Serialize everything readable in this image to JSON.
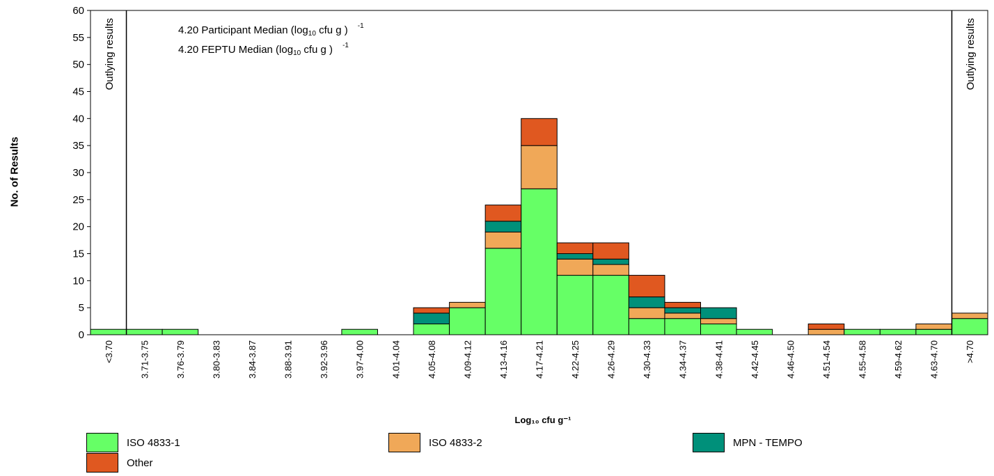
{
  "chart_data": {
    "type": "bar",
    "stacked": true,
    "title": "",
    "xlabel": "Log₁₀ cfu g⁻¹",
    "ylabel": "No. of Results",
    "ylim": [
      0,
      60
    ],
    "yticks": [
      0,
      5,
      10,
      15,
      20,
      25,
      30,
      35,
      40,
      45,
      50,
      55,
      60
    ],
    "grid": false,
    "legend_position": "bottom",
    "categories": [
      "<3.70",
      "3.71-3.75",
      "3.76-3.79",
      "3.80-3.83",
      "3.84-3.87",
      "3.88-3.91",
      "3.92-3.96",
      "3.97-4.00",
      "4.01-4.04",
      "4.05-4.08",
      "4.09-4.12",
      "4.13-4.16",
      "4.17-4.21",
      "4.22-4.25",
      "4.26-4.29",
      "4.30-4.33",
      "4.34-4.37",
      "4.38-4.41",
      "4.42-4.45",
      "4.46-4.50",
      "4.51-4.54",
      "4.55-4.58",
      "4.59-4.62",
      "4.63-4.70",
      ">4.70"
    ],
    "series": [
      {
        "name": "ISO 4833-1",
        "color": "#66ff66",
        "values": [
          1,
          1,
          1,
          0,
          0,
          0,
          0,
          1,
          0,
          2,
          5,
          16,
          27,
          11,
          11,
          3,
          3,
          2,
          1,
          0,
          0,
          1,
          1,
          1,
          3
        ]
      },
      {
        "name": "ISO 4833-2",
        "color": "#f0a858",
        "values": [
          0,
          0,
          0,
          0,
          0,
          0,
          0,
          0,
          0,
          0,
          1,
          3,
          8,
          3,
          2,
          2,
          1,
          1,
          0,
          0,
          1,
          0,
          0,
          1,
          1
        ]
      },
      {
        "name": "MPN - TEMPO",
        "color": "#00907a",
        "values": [
          0,
          0,
          0,
          0,
          0,
          0,
          0,
          0,
          0,
          2,
          0,
          2,
          0,
          1,
          1,
          2,
          1,
          2,
          0,
          0,
          0,
          0,
          0,
          0,
          0
        ]
      },
      {
        "name": "Other",
        "color": "#e05820",
        "values": [
          0,
          0,
          0,
          0,
          0,
          0,
          0,
          0,
          0,
          1,
          0,
          3,
          5,
          2,
          3,
          4,
          1,
          0,
          0,
          0,
          1,
          0,
          0,
          0,
          0
        ]
      }
    ],
    "outlier_label": "Outlying results",
    "annotations": [
      {
        "value": "4.20",
        "label": "Participant Median (log",
        "sub": "10",
        "unit": " cfu g",
        "sup": "-1",
        "close": ")"
      },
      {
        "value": "4.20",
        "label": "FEPTU Median (log",
        "sub": "10",
        "unit": " cfu g",
        "sup": "-1",
        "close": ")"
      }
    ]
  }
}
